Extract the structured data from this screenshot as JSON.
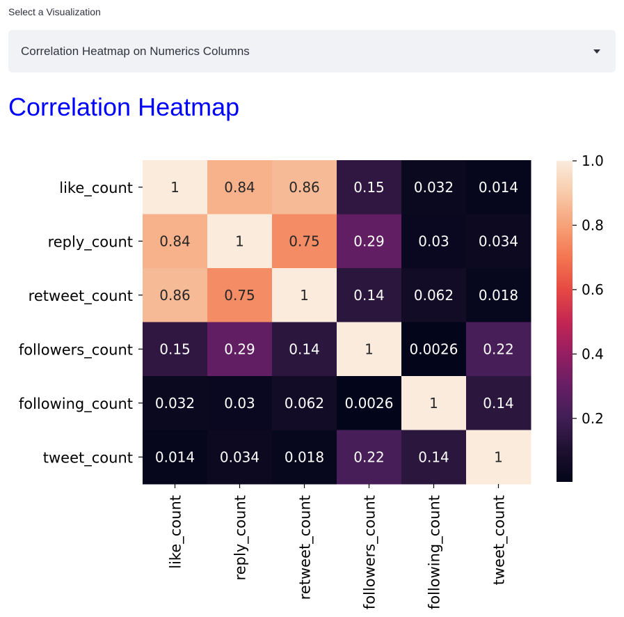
{
  "select": {
    "label": "Select a Visualization",
    "value": "Correlation Heatmap on Numerics Columns"
  },
  "heading": "Correlation Heatmap",
  "colors": {
    "heading": "#0000ff"
  },
  "chart_data": {
    "type": "heatmap",
    "rows": [
      "like_count",
      "reply_count",
      "retweet_count",
      "followers_count",
      "following_count",
      "tweet_count"
    ],
    "columns": [
      "like_count",
      "reply_count",
      "retweet_count",
      "followers_count",
      "following_count",
      "tweet_count"
    ],
    "values": [
      [
        1,
        0.84,
        0.86,
        0.15,
        0.032,
        0.014
      ],
      [
        0.84,
        1,
        0.75,
        0.29,
        0.03,
        0.034
      ],
      [
        0.86,
        0.75,
        1,
        0.14,
        0.062,
        0.018
      ],
      [
        0.15,
        0.29,
        0.14,
        1,
        0.0026,
        0.22
      ],
      [
        0.032,
        0.03,
        0.062,
        0.0026,
        1,
        0.14
      ],
      [
        0.014,
        0.034,
        0.018,
        0.22,
        0.14,
        1
      ]
    ],
    "annotations": [
      [
        "1",
        "0.84",
        "0.86",
        "0.15",
        "0.032",
        "0.014"
      ],
      [
        "0.84",
        "1",
        "0.75",
        "0.29",
        "0.03",
        "0.034"
      ],
      [
        "0.86",
        "0.75",
        "1",
        "0.14",
        "0.062",
        "0.018"
      ],
      [
        "0.15",
        "0.29",
        "0.14",
        "1",
        "0.0026",
        "0.22"
      ],
      [
        "0.032",
        "0.03",
        "0.062",
        "0.0026",
        "1",
        "0.14"
      ],
      [
        "0.014",
        "0.034",
        "0.018",
        "0.22",
        "0.14",
        "1"
      ]
    ],
    "colormap": "rocket",
    "colorbar": {
      "vmin": 0.0026,
      "vmax": 1.0,
      "ticks": [
        "0.2",
        "0.4",
        "0.6",
        "0.8",
        "1.0"
      ]
    },
    "grid": false
  }
}
